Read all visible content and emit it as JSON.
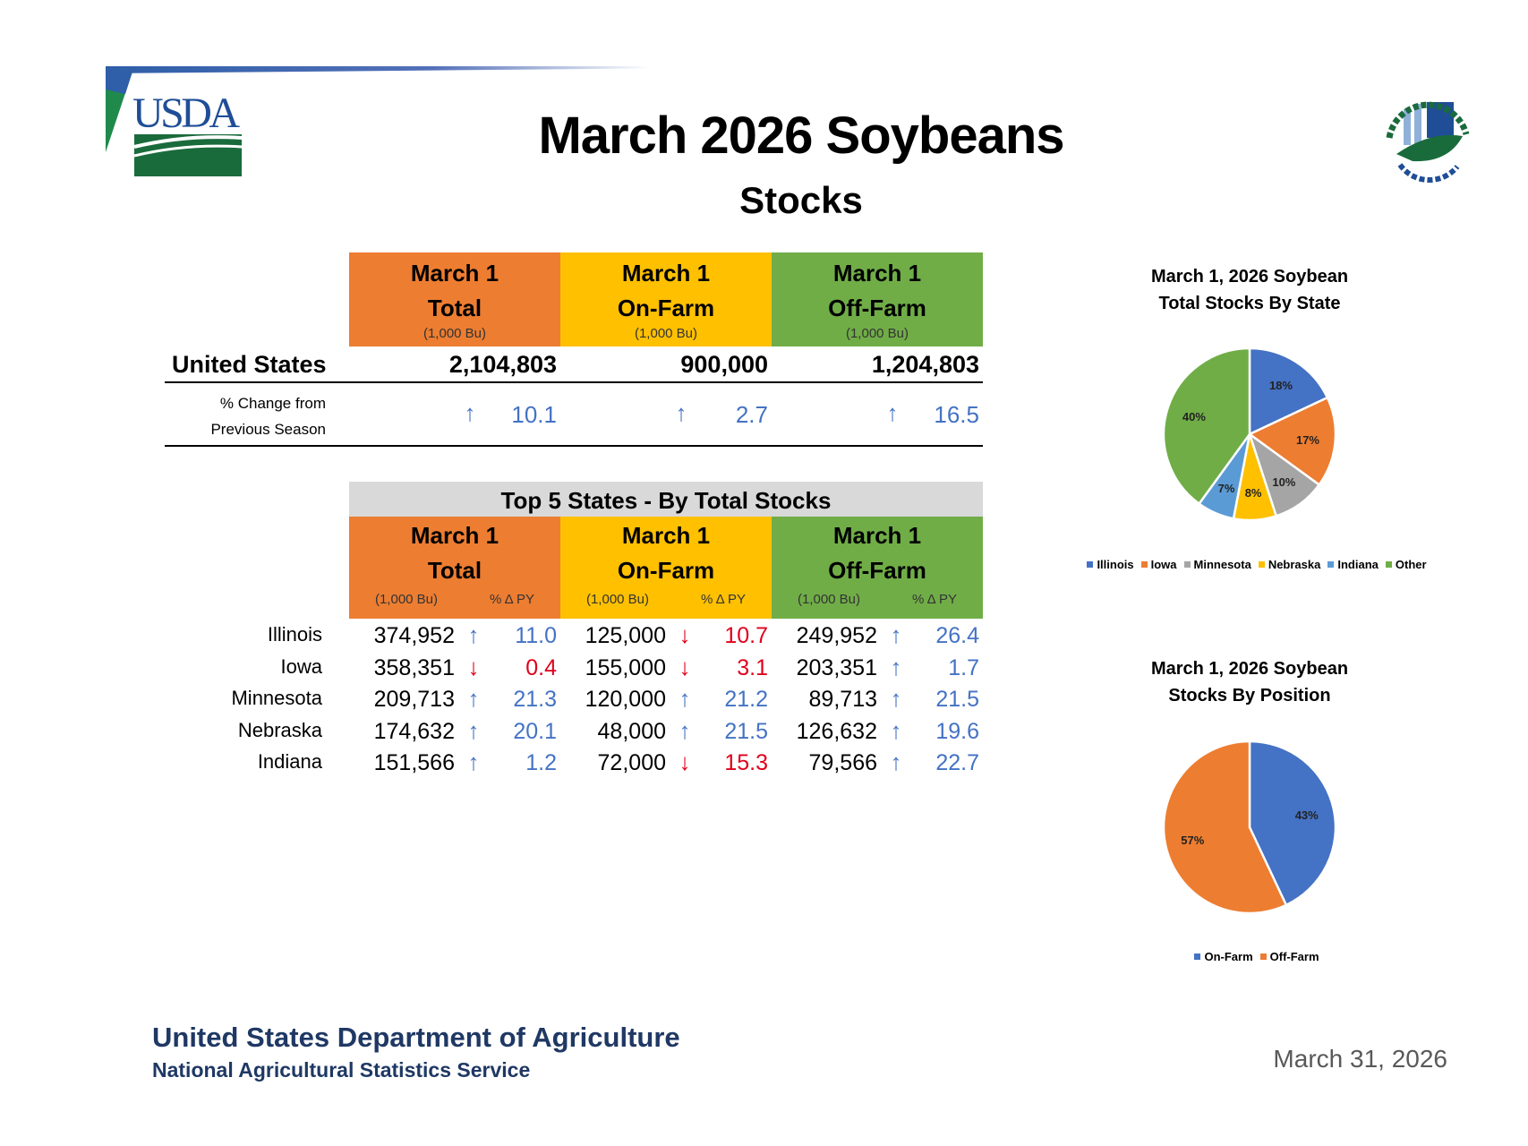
{
  "header": {
    "title": "March 2026 Soybeans",
    "subtitle": "Stocks",
    "logo_left": "USDA",
    "logo_right": "AGRICULTURE COUNTS"
  },
  "colors": {
    "total": "#ED7D31",
    "on_farm": "#FFC000",
    "off_farm": "#70AD47",
    "up": "#4472C4",
    "down": "#E0001B",
    "indiana": "#5B9BD5",
    "illinois": "#4472C4",
    "minnesota": "#A5A5A5"
  },
  "national": {
    "columns": [
      {
        "line1": "March 1",
        "line2": "Total",
        "unit": "(1,000 Bu)"
      },
      {
        "line1": "March 1",
        "line2": "On-Farm",
        "unit": "(1,000 Bu)"
      },
      {
        "line1": "March 1",
        "line2": "Off-Farm",
        "unit": "(1,000 Bu)"
      }
    ],
    "row_label": "United States",
    "values": [
      "2,104,803",
      "900,000",
      "1,204,803"
    ],
    "change_label_1": "% Change from",
    "change_label_2": "Previous Season",
    "changes": [
      {
        "dir": "up",
        "value": "10.1"
      },
      {
        "dir": "up",
        "value": "2.7"
      },
      {
        "dir": "up",
        "value": "16.5"
      }
    ]
  },
  "top5": {
    "title": "Top 5 States - By Total Stocks",
    "columns": [
      {
        "line1": "March 1",
        "line2": "Total"
      },
      {
        "line1": "March 1",
        "line2": "On-Farm"
      },
      {
        "line1": "March 1",
        "line2": "Off-Farm"
      }
    ],
    "sub_unit": "(1,000 Bu)",
    "sub_change": "% Δ PY",
    "rows": [
      {
        "state": "Illinois",
        "cells": [
          {
            "v": "374,952",
            "dir": "up",
            "c": "11.0"
          },
          {
            "v": "125,000",
            "dir": "down",
            "c": "10.7"
          },
          {
            "v": "249,952",
            "dir": "up",
            "c": "26.4"
          }
        ]
      },
      {
        "state": "Iowa",
        "cells": [
          {
            "v": "358,351",
            "dir": "down",
            "c": "0.4"
          },
          {
            "v": "155,000",
            "dir": "down",
            "c": "3.1"
          },
          {
            "v": "203,351",
            "dir": "up",
            "c": "1.7"
          }
        ]
      },
      {
        "state": "Minnesota",
        "cells": [
          {
            "v": "209,713",
            "dir": "up",
            "c": "21.3"
          },
          {
            "v": "120,000",
            "dir": "up",
            "c": "21.2"
          },
          {
            "v": "89,713",
            "dir": "up",
            "c": "21.5"
          }
        ]
      },
      {
        "state": "Nebraska",
        "cells": [
          {
            "v": "174,632",
            "dir": "up",
            "c": "20.1"
          },
          {
            "v": "48,000",
            "dir": "up",
            "c": "21.5"
          },
          {
            "v": "126,632",
            "dir": "up",
            "c": "19.6"
          }
        ]
      },
      {
        "state": "Indiana",
        "cells": [
          {
            "v": "151,566",
            "dir": "up",
            "c": "1.2"
          },
          {
            "v": "72,000",
            "dir": "down",
            "c": "15.3"
          },
          {
            "v": "79,566",
            "dir": "up",
            "c": "22.7"
          }
        ]
      }
    ]
  },
  "chart_data": [
    {
      "type": "pie",
      "title_line1": "March 1, 2026 Soybean",
      "title_line2": "Total Stocks By State",
      "labels": [
        "Illinois",
        "Iowa",
        "Minnesota",
        "Nebraska",
        "Indiana",
        "Other"
      ],
      "values": [
        18,
        17,
        10,
        8,
        7,
        40
      ],
      "data_labels": [
        "18%",
        "17%",
        "10%",
        "8%",
        "7%",
        "40%"
      ],
      "colors": [
        "#4472C4",
        "#ED7D31",
        "#A5A5A5",
        "#FFC000",
        "#5B9BD5",
        "#70AD47"
      ],
      "legend": "bottom"
    },
    {
      "type": "pie",
      "title_line1": "March 1, 2026 Soybean",
      "title_line2": "Stocks By Position",
      "labels": [
        "On-Farm",
        "Off-Farm"
      ],
      "values": [
        43,
        57
      ],
      "data_labels": [
        "43%",
        "57%"
      ],
      "colors": [
        "#4472C4",
        "#ED7D31"
      ],
      "legend": "bottom"
    }
  ],
  "footer": {
    "agency": "United States Department of Agriculture",
    "service": "National Agricultural Statistics Service",
    "date": "March 31, 2026"
  }
}
